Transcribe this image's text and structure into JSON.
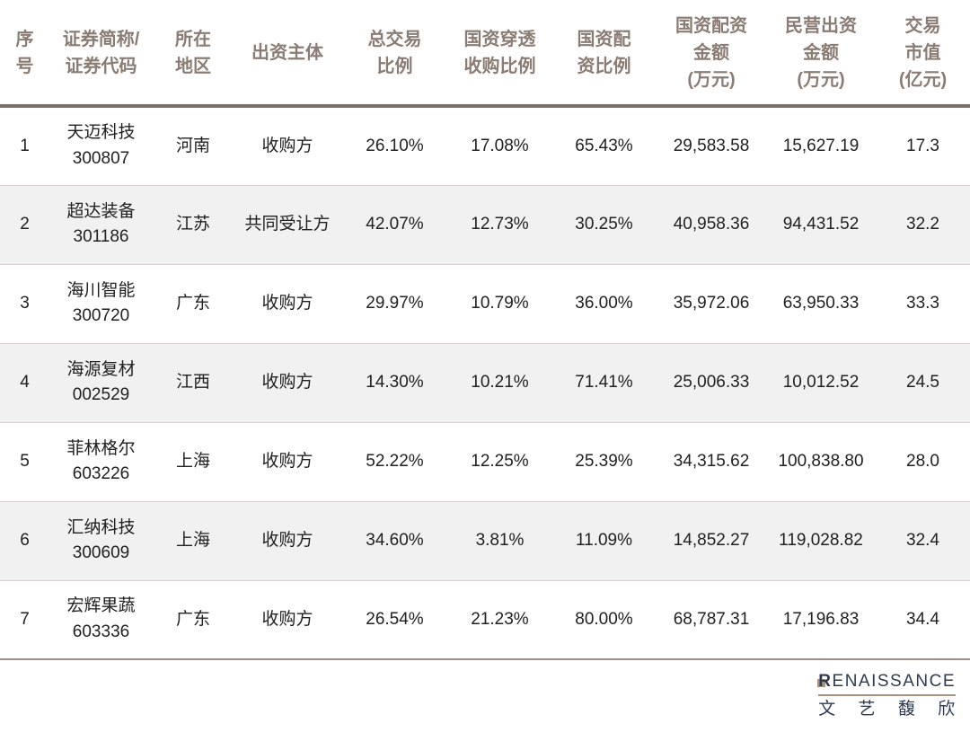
{
  "chart_data": {
    "type": "table",
    "title": "",
    "columns": [
      {
        "id": "index",
        "label": "序\n号"
      },
      {
        "id": "name_code",
        "label": "证券简称/\n证券代码"
      },
      {
        "id": "region",
        "label": "所在\n地区"
      },
      {
        "id": "entity",
        "label": "出资主体"
      },
      {
        "id": "total_ratio",
        "label": "总交易\n比例"
      },
      {
        "id": "penetration_ratio",
        "label": "国资穿透\n收购比例"
      },
      {
        "id": "state_ratio",
        "label": "国资配\n资比例"
      },
      {
        "id": "state_amount",
        "label": "国资配资\n金额\n(万元)"
      },
      {
        "id": "private_amount",
        "label": "民营出资\n金额\n(万元)"
      },
      {
        "id": "market_value",
        "label": "交易\n市值\n(亿元)"
      }
    ],
    "rows": [
      {
        "index": "1",
        "name_code": "天迈科技\n300807",
        "region": "河南",
        "entity": "收购方",
        "total_ratio": "26.10%",
        "penetration_ratio": "17.08%",
        "state_ratio": "65.43%",
        "state_amount": "29,583.58",
        "private_amount": "15,627.19",
        "market_value": "17.3"
      },
      {
        "index": "2",
        "name_code": "超达装备\n301186",
        "region": "江苏",
        "entity": "共同受让方",
        "total_ratio": "42.07%",
        "penetration_ratio": "12.73%",
        "state_ratio": "30.25%",
        "state_amount": "40,958.36",
        "private_amount": "94,431.52",
        "market_value": "32.2"
      },
      {
        "index": "3",
        "name_code": "海川智能\n300720",
        "region": "广东",
        "entity": "收购方",
        "total_ratio": "29.97%",
        "penetration_ratio": "10.79%",
        "state_ratio": "36.00%",
        "state_amount": "35,972.06",
        "private_amount": "63,950.33",
        "market_value": "33.3"
      },
      {
        "index": "4",
        "name_code": "海源复材\n002529",
        "region": "江西",
        "entity": "收购方",
        "total_ratio": "14.30%",
        "penetration_ratio": "10.21%",
        "state_ratio": "71.41%",
        "state_amount": "25,006.33",
        "private_amount": "10,012.52",
        "market_value": "24.5"
      },
      {
        "index": "5",
        "name_code": "菲林格尔\n603226",
        "region": "上海",
        "entity": "收购方",
        "total_ratio": "52.22%",
        "penetration_ratio": "12.25%",
        "state_ratio": "25.39%",
        "state_amount": "34,315.62",
        "private_amount": "100,838.80",
        "market_value": "28.0"
      },
      {
        "index": "6",
        "name_code": "汇纳科技\n300609",
        "region": "上海",
        "entity": "收购方",
        "total_ratio": "34.60%",
        "penetration_ratio": "3.81%",
        "state_ratio": "11.09%",
        "state_amount": "14,852.27",
        "private_amount": "119,028.82",
        "market_value": "32.4"
      },
      {
        "index": "7",
        "name_code": "宏辉果蔬\n603336",
        "region": "广东",
        "entity": "收购方",
        "total_ratio": "26.54%",
        "penetration_ratio": "21.23%",
        "state_ratio": "80.00%",
        "state_amount": "68,787.31",
        "private_amount": "17,196.83",
        "market_value": "34.4"
      }
    ]
  },
  "footer": {
    "logo_en_first": "R",
    "logo_en_rest": "ENAISSANCE",
    "logo_cn": "文 艺 馥 欣"
  },
  "colors": {
    "header_text": "#8b7c73",
    "header_rule": "#7c6f67",
    "row_stripe": "#f1f1f1",
    "row_border": "#d6d1ce",
    "bottom_border": "#9d8d85",
    "body_text": "#212121",
    "logo_navy": "#2e3b52",
    "logo_tan": "#a9937f"
  }
}
